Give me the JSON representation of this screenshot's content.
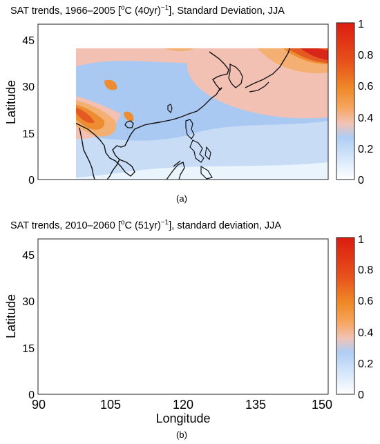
{
  "panels": [
    {
      "id": "a",
      "title_main": "SAT trends, 1966–2005 [",
      "title_deg": "o",
      "title_unit": "C (40yr)",
      "title_exp": "−1",
      "title_tail": "], Standard Deviation, JJA",
      "caption": "(a)"
    },
    {
      "id": "b",
      "title_main": "SAT trends, 2010–2060 [",
      "title_deg": "o",
      "title_unit": "C (51yr)",
      "title_exp": "−1",
      "title_tail": "], standard deviation, JJA",
      "caption": "(b)"
    }
  ],
  "axes": {
    "ylabel": "Latitude",
    "xlabel": "Longitude",
    "yticks": [
      "0",
      "15",
      "30",
      "45"
    ],
    "xticks": [
      "90",
      "105",
      "120",
      "135",
      "150"
    ]
  },
  "colorbar": {
    "ticks": [
      "0",
      "0.2",
      "0.4",
      "0.6",
      "0.8",
      "1"
    ],
    "stops": [
      "#ffffff",
      "#d4e6fa",
      "#afcdf3",
      "#f2c2b4",
      "#f6a55f",
      "#ef8a28",
      "#e8521c",
      "#db1c10"
    ]
  },
  "map_colors": {
    "ocean_low": "#eaf4fd",
    "light_blue": "#c8dcf6",
    "blue": "#a9c8f2",
    "pink": "#f2c1b4",
    "orange_light": "#f4b072",
    "orange": "#ee8c31",
    "red_orange": "#e55a22",
    "red": "#d8261a"
  },
  "chart_data": {
    "type": "heatmap",
    "projection": "lat-lon",
    "xlim": [
      90,
      150
    ],
    "ylim": [
      0,
      50
    ],
    "clim": [
      0,
      1
    ]
  }
}
